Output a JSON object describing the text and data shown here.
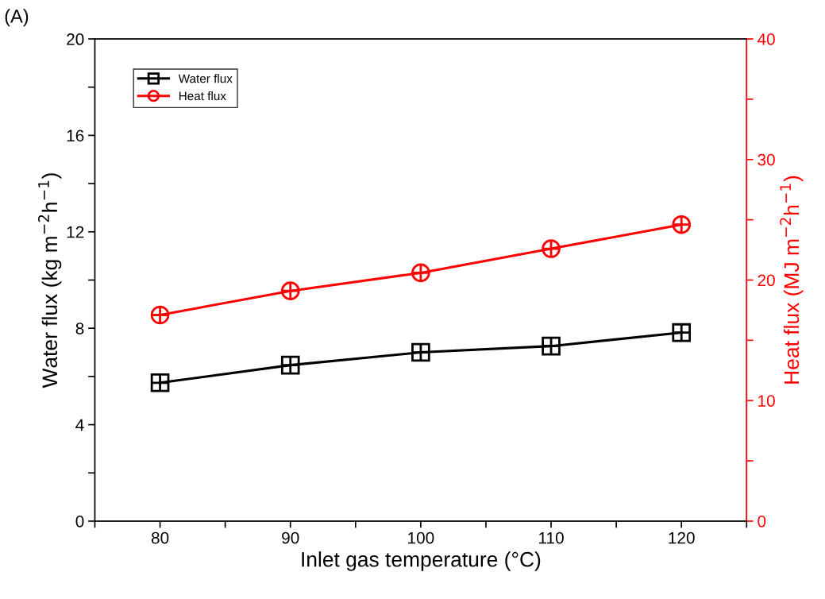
{
  "chart_data": {
    "type": "line",
    "xlabel": "Inlet gas temperature (°C)",
    "ylabel": "Water flux (kg m$^{−2}$h$^{−1}$)",
    "y2label": "Heat flux (MJ m$^{−2}$h$^{−1}$)",
    "annotations": [
      "(A)"
    ],
    "x": [
      80,
      90,
      100,
      110,
      120
    ],
    "series": [
      {
        "name": "Water flux",
        "color": "#000000",
        "marker": "square",
        "values": [
          5.74,
          6.47,
          7.0,
          7.26,
          7.82
        ]
      },
      {
        "name": "Heat flux",
        "color": "#ff0000",
        "marker": "circle",
        "axis": "y2",
        "values": [
          17.1,
          19.1,
          20.6,
          22.6,
          24.6
        ]
      }
    ],
    "xlim": [
      75,
      125
    ],
    "xticks": [
      {
        "value": 75,
        "label": null
      },
      80,
      {
        "value": 85,
        "label": null
      },
      90,
      {
        "value": 95,
        "label": null
      },
      100,
      {
        "value": 105,
        "label": null
      },
      110,
      {
        "value": 115,
        "label": null
      },
      120,
      {
        "value": 125,
        "label": null
      }
    ],
    "ylim": [
      0,
      20
    ],
    "yticks": [
      0,
      {
        "value": 2,
        "label": null
      },
      4,
      {
        "value": 6,
        "label": null
      },
      8,
      {
        "value": 10,
        "label": null
      },
      12,
      {
        "value": 14,
        "label": null
      },
      16,
      {
        "value": 18,
        "label": null
      },
      20
    ],
    "y2lim": [
      0,
      40
    ],
    "y2ticks": [
      0,
      {
        "value": 5,
        "label": null
      },
      10,
      {
        "value": 15,
        "label": null
      },
      20,
      {
        "value": 25,
        "label": null
      },
      30,
      {
        "value": 35,
        "label": null
      },
      40
    ],
    "legend": "top left",
    "grid": false,
    "line_style": "solid"
  }
}
